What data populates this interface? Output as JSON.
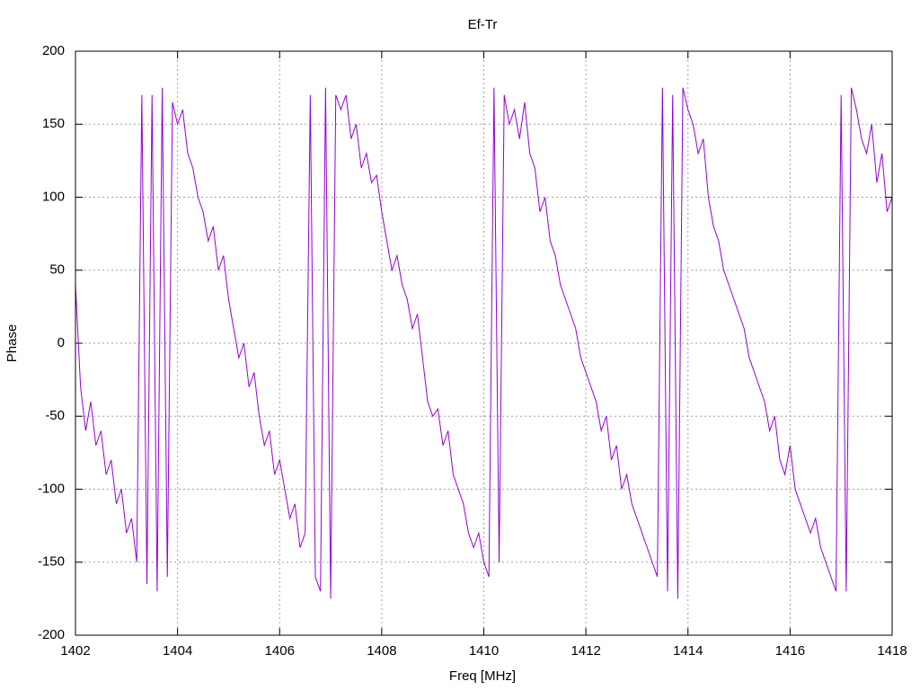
{
  "chart_data": {
    "type": "line",
    "title": "Ef-Tr",
    "x_label": "Freq [MHz]",
    "y_label": "Phase",
    "xlim": [
      1402,
      1418
    ],
    "xticks": [
      1402,
      1404,
      1406,
      1408,
      1410,
      1412,
      1414,
      1416,
      1418
    ],
    "ylim": [
      -200,
      200
    ],
    "yticks": [
      -200,
      -150,
      -100,
      -50,
      0,
      50,
      100,
      150,
      200
    ],
    "grid": true,
    "x": [
      1402.0,
      1402.1,
      1402.2,
      1402.3,
      1402.4,
      1402.5,
      1402.6,
      1402.7,
      1402.8,
      1402.9,
      1403.0,
      1403.1,
      1403.2,
      1403.3,
      1403.4,
      1403.5,
      1403.6,
      1403.7,
      1403.8,
      1403.9,
      1404.0,
      1404.1,
      1404.2,
      1404.3,
      1404.4,
      1404.5,
      1404.6,
      1404.7,
      1404.8,
      1404.9,
      1405.0,
      1405.1,
      1405.2,
      1405.3,
      1405.4,
      1405.5,
      1405.6,
      1405.7,
      1405.8,
      1405.9,
      1406.0,
      1406.1,
      1406.2,
      1406.3,
      1406.4,
      1406.5,
      1406.6,
      1406.7,
      1406.8,
      1406.9,
      1407.0,
      1407.1,
      1407.2,
      1407.3,
      1407.4,
      1407.5,
      1407.6,
      1407.7,
      1407.8,
      1407.9,
      1408.0,
      1408.1,
      1408.2,
      1408.3,
      1408.4,
      1408.5,
      1408.6,
      1408.7,
      1408.8,
      1408.9,
      1409.0,
      1409.1,
      1409.2,
      1409.3,
      1409.4,
      1409.5,
      1409.6,
      1409.7,
      1409.8,
      1409.9,
      1410.0,
      1410.1,
      1410.2,
      1410.3,
      1410.4,
      1410.5,
      1410.6,
      1410.7,
      1410.8,
      1410.9,
      1411.0,
      1411.1,
      1411.2,
      1411.3,
      1411.4,
      1411.5,
      1411.6,
      1411.7,
      1411.8,
      1411.9,
      1412.0,
      1412.1,
      1412.2,
      1412.3,
      1412.4,
      1412.5,
      1412.6,
      1412.7,
      1412.8,
      1412.9,
      1413.0,
      1413.1,
      1413.2,
      1413.3,
      1413.4,
      1413.5,
      1413.6,
      1413.7,
      1413.8,
      1413.9,
      1414.0,
      1414.1,
      1414.2,
      1414.3,
      1414.4,
      1414.5,
      1414.6,
      1414.7,
      1414.8,
      1414.9,
      1415.0,
      1415.1,
      1415.2,
      1415.3,
      1415.4,
      1415.5,
      1415.6,
      1415.7,
      1415.8,
      1415.9,
      1416.0,
      1416.1,
      1416.2,
      1416.3,
      1416.4,
      1416.5,
      1416.6,
      1416.7,
      1416.8,
      1416.9,
      1417.0,
      1417.1,
      1417.2,
      1417.3,
      1417.4,
      1417.5,
      1417.6,
      1417.7,
      1417.8,
      1417.9,
      1418.0
    ],
    "series": [
      {
        "color": "#9400d3",
        "values": [
          40,
          -30,
          -60,
          -40,
          -70,
          -60,
          -90,
          -80,
          -110,
          -100,
          -130,
          -120,
          -150,
          170,
          -165,
          170,
          -170,
          175,
          -160,
          165,
          150,
          160,
          130,
          120,
          100,
          90,
          70,
          80,
          50,
          60,
          30,
          10,
          -10,
          0,
          -30,
          -20,
          -50,
          -70,
          -60,
          -90,
          -80,
          -100,
          -120,
          -110,
          -140,
          -130,
          170,
          -160,
          -170,
          175,
          -175,
          170,
          160,
          170,
          140,
          150,
          120,
          130,
          110,
          115,
          90,
          70,
          50,
          60,
          40,
          30,
          10,
          20,
          -10,
          -40,
          -50,
          -45,
          -70,
          -60,
          -90,
          -100,
          -110,
          -130,
          -140,
          -130,
          -150,
          -160,
          175,
          -150,
          170,
          150,
          160,
          140,
          165,
          130,
          120,
          90,
          100,
          70,
          60,
          40,
          30,
          20,
          10,
          -10,
          -20,
          -30,
          -40,
          -60,
          -50,
          -80,
          -70,
          -100,
          -90,
          -110,
          -120,
          -130,
          -140,
          -150,
          -160,
          175,
          -170,
          170,
          -175,
          175,
          160,
          150,
          130,
          140,
          100,
          80,
          70,
          50,
          40,
          30,
          20,
          10,
          -10,
          -20,
          -30,
          -40,
          -60,
          -50,
          -80,
          -90,
          -70,
          -100,
          -110,
          -120,
          -130,
          -120,
          -140,
          -150,
          -160,
          -170,
          170,
          -170,
          175,
          160,
          140,
          130,
          150,
          110,
          130,
          90,
          100
        ]
      }
    ]
  }
}
